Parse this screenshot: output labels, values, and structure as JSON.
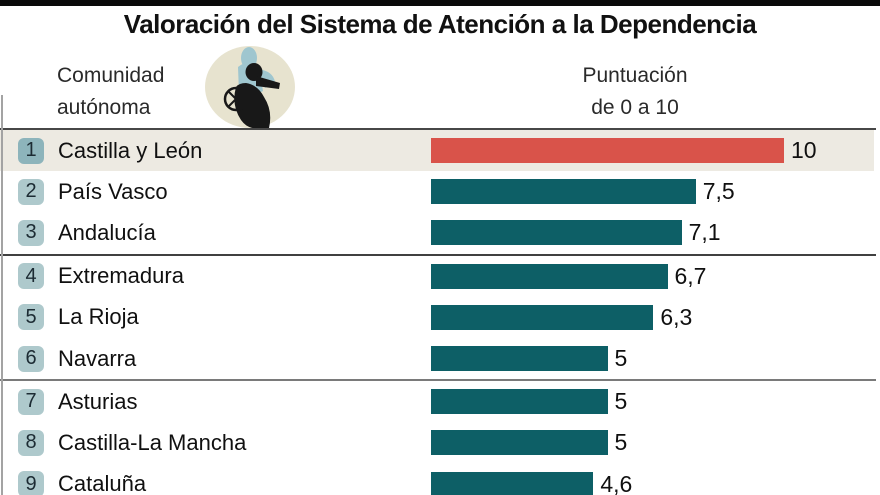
{
  "header": {
    "title": "Valoración del Sistema de Atención a la Dependencia",
    "col_community": [
      "Comunidad",
      "autónoma"
    ],
    "col_score": [
      "Puntuación",
      "de 0 a 10"
    ],
    "icon": "caregiver-wheelchair-icon"
  },
  "rows": [
    {
      "rank": "1",
      "name": "Castilla y León",
      "value": 10,
      "value_label": "10",
      "highlight": true
    },
    {
      "rank": "2",
      "name": "País Vasco",
      "value": 7.5,
      "value_label": "7,5",
      "highlight": false
    },
    {
      "rank": "3",
      "name": "Andalucía",
      "value": 7.1,
      "value_label": "7,1",
      "highlight": false
    },
    {
      "rank": "4",
      "name": "Extremadura",
      "value": 6.7,
      "value_label": "6,7",
      "highlight": false
    },
    {
      "rank": "5",
      "name": "La Rioja",
      "value": 6.3,
      "value_label": "6,3",
      "highlight": false
    },
    {
      "rank": "6",
      "name": "Navarra",
      "value": 5,
      "value_label": "5",
      "highlight": false
    },
    {
      "rank": "7",
      "name": "Asturias",
      "value": 5,
      "value_label": "5",
      "highlight": false
    },
    {
      "rank": "8",
      "name": "Castilla-La Mancha",
      "value": 5,
      "value_label": "5",
      "highlight": false
    },
    {
      "rank": "9",
      "name": "Cataluña",
      "value": 4.6,
      "value_label": "4,6",
      "highlight": false
    }
  ],
  "colors": {
    "bar_teal": "#0d5f66",
    "bar_highlight_red": "#d9534a",
    "highlight_row_bg": "#edeae2",
    "badge_bg": "#aec9cc",
    "badge_highlight_bg": "#8db4bb",
    "badge_text": "#1c2b33",
    "icon_circle": "#e7e3cf",
    "icon_figure_back": "#9fc6cf",
    "icon_figure_front": "#181818"
  },
  "chart_data": {
    "type": "bar",
    "orientation": "horizontal",
    "title": "Valoración del Sistema de Atención a la Dependencia",
    "categories": [
      "Castilla y León",
      "País Vasco",
      "Andalucía",
      "Extremadura",
      "La Rioja",
      "Navarra",
      "Asturias",
      "Castilla-La Mancha",
      "Cataluña"
    ],
    "values": [
      10,
      7.5,
      7.1,
      6.7,
      6.3,
      5,
      5,
      5,
      4.6
    ],
    "value_labels": [
      "10",
      "7,5",
      "7,1",
      "6,7",
      "6,3",
      "5",
      "5",
      "5",
      "4,6"
    ],
    "ranks": [
      1,
      2,
      3,
      4,
      5,
      6,
      7,
      8,
      9
    ],
    "xlabel": "Puntuación de 0 a 10",
    "ylabel": "Comunidad autónoma",
    "xlim": [
      0,
      10
    ],
    "grid": false,
    "legend": "none",
    "highlighted_category": "Castilla y León",
    "group_breaks_after_ranks": [
      3,
      6
    ]
  }
}
